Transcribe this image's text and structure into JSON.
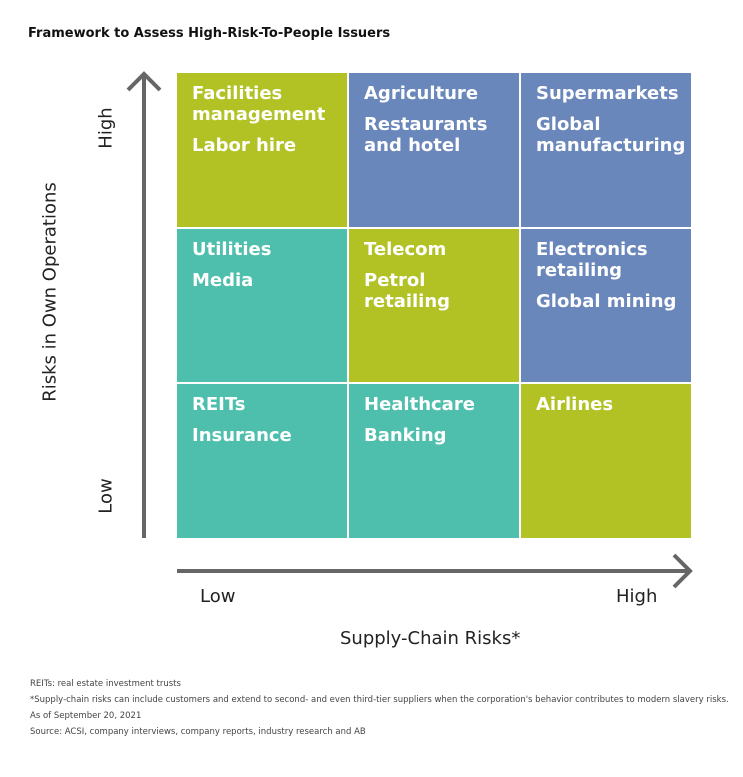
{
  "title": "Framework to Assess High-Risk-To-People Issuers",
  "y_axis": {
    "title": "Risks in Own Operations",
    "high": "High",
    "low": "Low"
  },
  "x_axis": {
    "title": "Supply-Chain Risks*",
    "low": "Low",
    "high": "High"
  },
  "cells": [
    {
      "color": "#b2c225",
      "items": [
        "Facilities management",
        "Labor hire"
      ]
    },
    {
      "color": "#6a87bb",
      "items": [
        "Agriculture",
        "Restaurants and hotel"
      ]
    },
    {
      "color": "#6a87bb",
      "items": [
        "Supermarkets",
        "Global manufacturing"
      ]
    },
    {
      "color": "#4ebfad",
      "items": [
        "Utilities",
        "Media"
      ]
    },
    {
      "color": "#b2c225",
      "items": [
        "Telecom",
        "Petrol retailing"
      ]
    },
    {
      "color": "#6a87bb",
      "items": [
        "Electronics retailing",
        "Global mining"
      ]
    },
    {
      "color": "#4ebfad",
      "items": [
        "REITs",
        "Insurance"
      ]
    },
    {
      "color": "#4ebfad",
      "items": [
        "Healthcare",
        "Banking"
      ]
    },
    {
      "color": "#b2c225",
      "items": [
        "Airlines"
      ]
    }
  ],
  "notes": [
    "REITs: real estate investment trusts",
    "*Supply-chain risks can include customers and extend to second- and even third-tier suppliers when the corporation's behavior contributes to modern slavery risks.",
    "As of September 20, 2021",
    "Source: ACSI, company interviews, company reports, industry research and AB"
  ]
}
